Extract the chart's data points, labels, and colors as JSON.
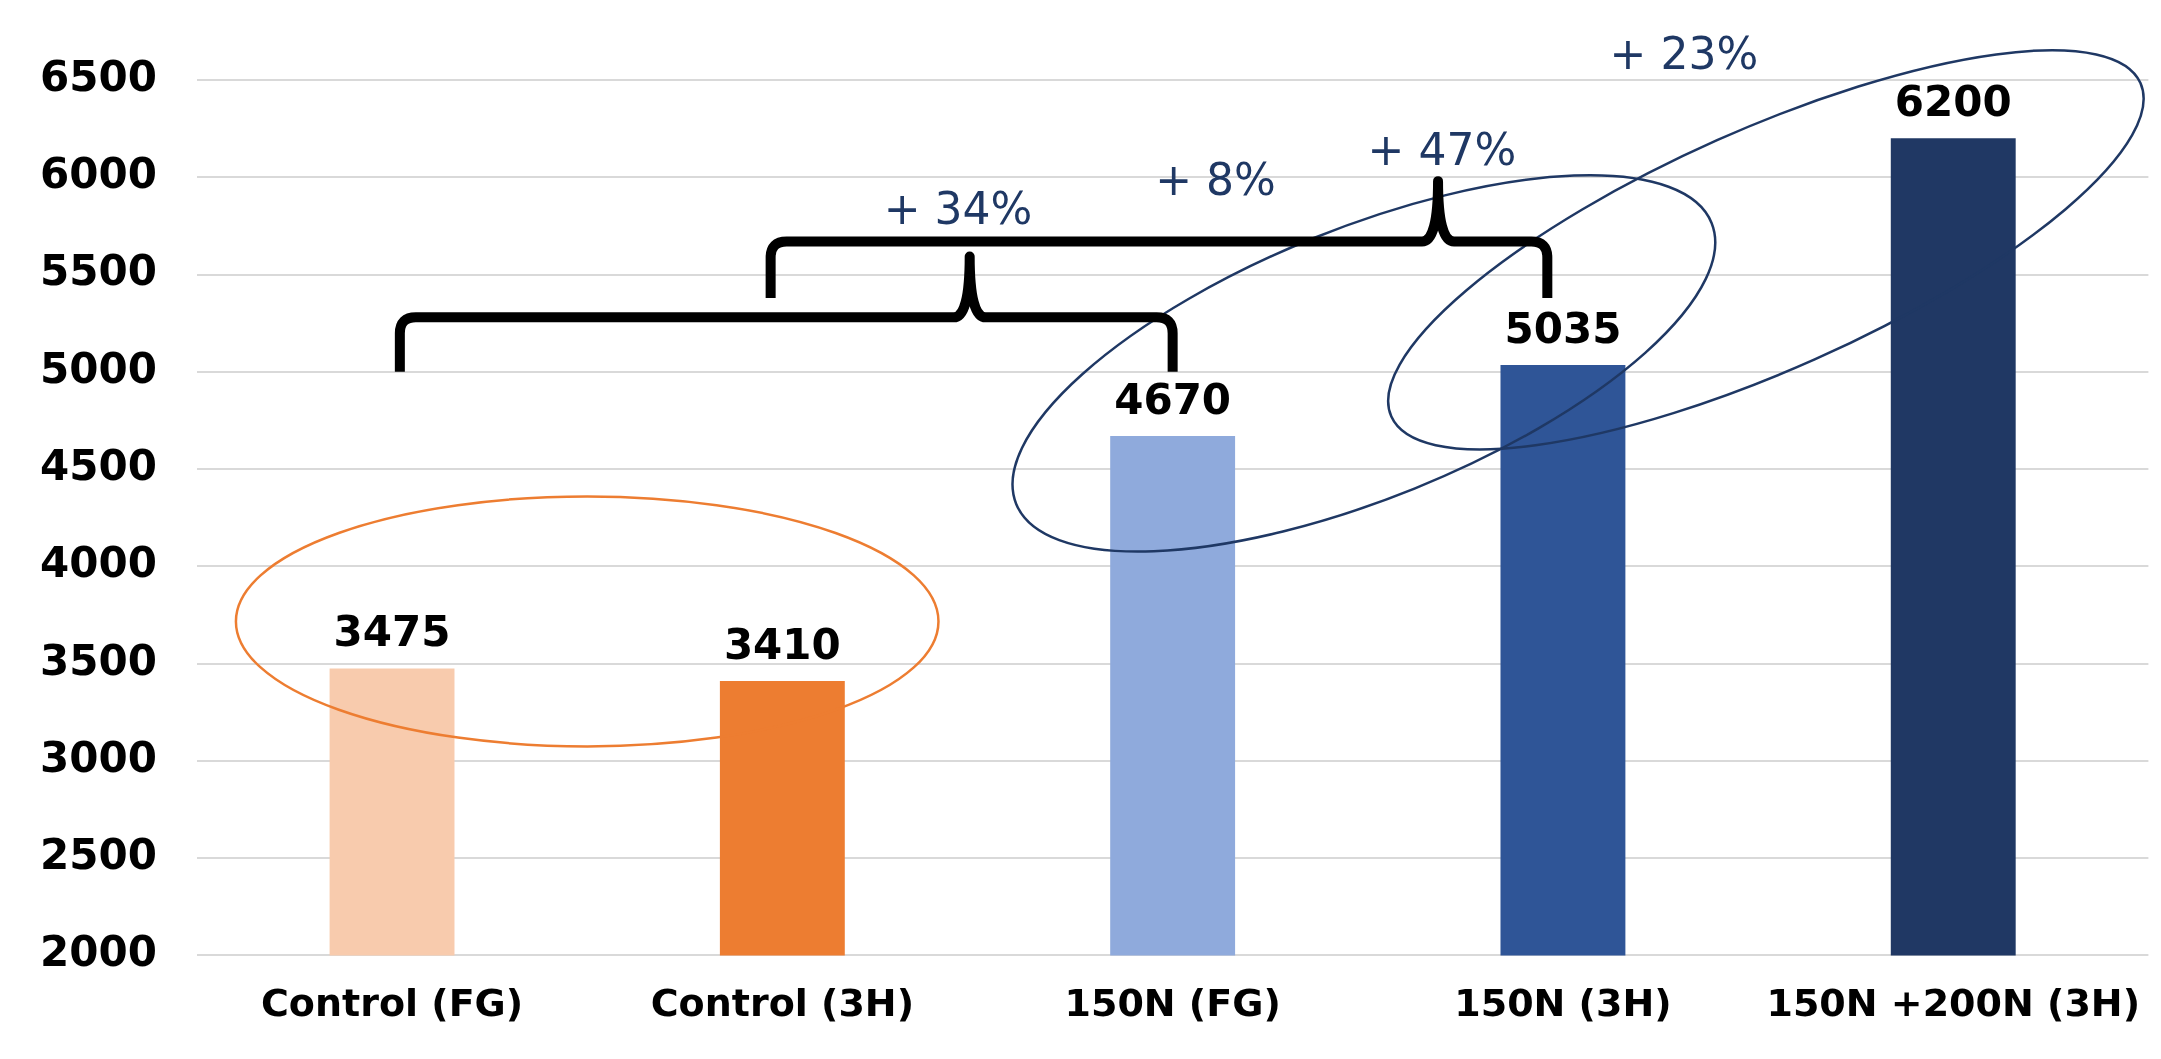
{
  "chart_data": {
    "type": "bar",
    "categories": [
      "Control (FG)",
      "Control (3H)",
      "150N (FG)",
      "150N (3H)",
      "150N +200N (3H)"
    ],
    "values": [
      3475,
      3410,
      4670,
      5035,
      6200
    ],
    "colors": [
      "#f8cbad",
      "#ed7d31",
      "#8faadc",
      "#2f5597",
      "#203864"
    ],
    "ylim": [
      2000,
      6500
    ],
    "yticks": [
      2000,
      2500,
      3000,
      3500,
      4000,
      4500,
      5000,
      5500,
      6000,
      6500
    ],
    "grid": "y",
    "data_labels": true,
    "annotations": [
      "+ 34%",
      "+ 8%",
      "+ 47%",
      "+ 23%"
    ]
  }
}
